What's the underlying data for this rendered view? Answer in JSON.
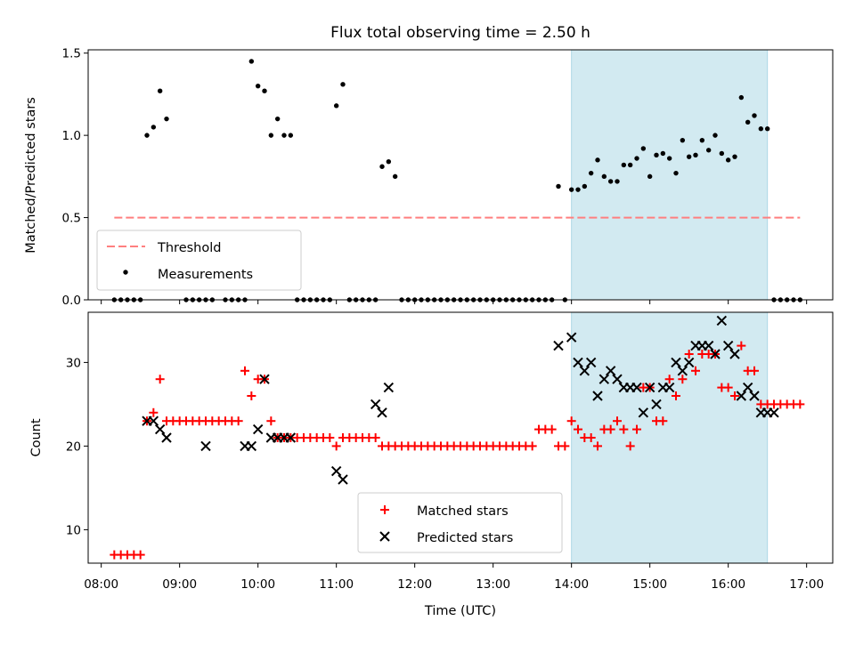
{
  "title": "Flux total observing time = 2.50 h",
  "colors": {
    "threshold": "#ff7f7f",
    "measurement": "#000000",
    "matched": "#ff0000",
    "predicted": "#000000",
    "window": "#add8e6"
  },
  "chart_data": [
    {
      "type": "scatter",
      "panel": "top",
      "ylabel": "Matched/Predicted stars",
      "ylim": [
        0,
        1.52
      ],
      "yticks": [
        0.0,
        0.5,
        1.0,
        1.5
      ],
      "ytick_labels": [
        "0.0",
        "0.5",
        "1.0",
        "1.5"
      ],
      "highlight_window": [
        "14:00",
        "16:30"
      ],
      "legend": {
        "position": "lower-left",
        "entries": [
          "Threshold",
          "Measurements"
        ]
      },
      "threshold": {
        "name": "Threshold",
        "y": 0.5,
        "x_range": [
          "08:10",
          "16:55"
        ]
      },
      "series": [
        {
          "name": "Measurements",
          "x": [
            "08:10",
            "08:15",
            "08:20",
            "08:25",
            "08:30",
            "08:35",
            "08:40",
            "08:45",
            "08:50",
            "09:05",
            "09:10",
            "09:15",
            "09:20",
            "09:25",
            "09:35",
            "09:40",
            "09:45",
            "09:50",
            "09:55",
            "10:00",
            "10:05",
            "10:10",
            "10:15",
            "10:20",
            "10:25",
            "10:30",
            "10:35",
            "10:40",
            "10:45",
            "10:50",
            "10:55",
            "11:00",
            "11:05",
            "11:10",
            "11:15",
            "11:20",
            "11:25",
            "11:30",
            "11:35",
            "11:40",
            "11:45",
            "11:50",
            "11:55",
            "12:00",
            "12:05",
            "12:10",
            "12:15",
            "12:20",
            "12:25",
            "12:30",
            "12:35",
            "12:40",
            "12:45",
            "12:50",
            "12:55",
            "13:00",
            "13:05",
            "13:10",
            "13:15",
            "13:20",
            "13:25",
            "13:30",
            "13:35",
            "13:40",
            "13:45",
            "13:50",
            "13:55",
            "14:00",
            "14:05",
            "14:10",
            "14:15",
            "14:20",
            "14:25",
            "14:30",
            "14:35",
            "14:40",
            "14:45",
            "14:50",
            "14:55",
            "15:00",
            "15:05",
            "15:10",
            "15:15",
            "15:20",
            "15:25",
            "15:30",
            "15:35",
            "15:40",
            "15:45",
            "15:50",
            "15:55",
            "16:00",
            "16:05",
            "16:10",
            "16:15",
            "16:20",
            "16:25",
            "16:30",
            "16:35",
            "16:40",
            "16:45",
            "16:50",
            "16:55"
          ],
          "y": [
            0,
            0,
            0,
            0,
            0,
            1.0,
            1.05,
            1.27,
            1.1,
            0,
            0,
            0,
            0,
            0,
            0,
            0,
            0,
            0,
            1.45,
            1.3,
            1.27,
            1.0,
            1.1,
            1.0,
            1.0,
            0,
            0,
            0,
            0,
            0,
            0,
            1.18,
            1.31,
            0,
            0,
            0,
            0,
            0,
            0.81,
            0.84,
            0.75,
            0,
            0,
            0,
            0,
            0,
            0,
            0,
            0,
            0,
            0,
            0,
            0,
            0,
            0,
            0,
            0,
            0,
            0,
            0,
            0,
            0,
            0,
            0,
            0,
            0.69,
            0,
            0.67,
            0.67,
            0.69,
            0.77,
            0.85,
            0.75,
            0.72,
            0.72,
            0.82,
            0.82,
            0.86,
            0.92,
            0.75,
            0.88,
            0.89,
            0.86,
            0.77,
            0.97,
            0.87,
            0.88,
            0.97,
            0.91,
            1.0,
            0.89,
            0.85,
            0.87,
            1.23,
            1.08,
            1.12,
            1.04,
            1.04,
            0,
            0,
            0,
            0,
            0
          ]
        }
      ]
    },
    {
      "type": "scatter",
      "panel": "bottom",
      "xlabel": "Time (UTC)",
      "ylabel": "Count",
      "ylim": [
        6,
        36
      ],
      "yticks": [
        10,
        20,
        30
      ],
      "ytick_labels": [
        "10",
        "20",
        "30"
      ],
      "xlim": [
        "07:50",
        "17:20"
      ],
      "xtick_labels": [
        "08:00",
        "09:00",
        "10:00",
        "11:00",
        "12:00",
        "13:00",
        "14:00",
        "15:00",
        "16:00",
        "17:00"
      ],
      "highlight_window": [
        "14:00",
        "16:30"
      ],
      "legend": {
        "position": "lower-center",
        "entries": [
          "Matched stars",
          "Predicted stars"
        ]
      },
      "series": [
        {
          "name": "Matched stars",
          "marker": "plus",
          "x": [
            "08:10",
            "08:15",
            "08:20",
            "08:25",
            "08:30",
            "08:35",
            "08:40",
            "08:45",
            "08:50",
            "08:55",
            "09:00",
            "09:05",
            "09:10",
            "09:15",
            "09:20",
            "09:25",
            "09:30",
            "09:35",
            "09:40",
            "09:45",
            "09:50",
            "09:55",
            "10:00",
            "10:05",
            "10:10",
            "10:15",
            "10:20",
            "10:25",
            "10:30",
            "10:35",
            "10:40",
            "10:45",
            "10:50",
            "10:55",
            "11:00",
            "11:05",
            "11:10",
            "11:15",
            "11:20",
            "11:25",
            "11:30",
            "11:35",
            "11:40",
            "11:45",
            "11:50",
            "11:55",
            "12:00",
            "12:05",
            "12:10",
            "12:15",
            "12:20",
            "12:25",
            "12:30",
            "12:35",
            "12:40",
            "12:45",
            "12:50",
            "12:55",
            "13:00",
            "13:05",
            "13:10",
            "13:15",
            "13:20",
            "13:25",
            "13:30",
            "13:35",
            "13:40",
            "13:45",
            "13:50",
            "13:55",
            "14:00",
            "14:05",
            "14:10",
            "14:15",
            "14:20",
            "14:25",
            "14:30",
            "14:35",
            "14:40",
            "14:45",
            "14:50",
            "14:55",
            "15:00",
            "15:05",
            "15:10",
            "15:15",
            "15:20",
            "15:25",
            "15:30",
            "15:35",
            "15:40",
            "15:45",
            "15:50",
            "15:55",
            "16:00",
            "16:05",
            "16:10",
            "16:15",
            "16:20",
            "16:25",
            "16:30",
            "16:35",
            "16:40",
            "16:45",
            "16:50",
            "16:55"
          ],
          "y": [
            7,
            7,
            7,
            7,
            7,
            23,
            24,
            28,
            23,
            23,
            23,
            23,
            23,
            23,
            23,
            23,
            23,
            23,
            23,
            23,
            29,
            26,
            28,
            28,
            23,
            21,
            21,
            21,
            21,
            21,
            21,
            21,
            21,
            21,
            20,
            21,
            21,
            21,
            21,
            21,
            21,
            20,
            20,
            20,
            20,
            20,
            20,
            20,
            20,
            20,
            20,
            20,
            20,
            20,
            20,
            20,
            20,
            20,
            20,
            20,
            20,
            20,
            20,
            20,
            20,
            22,
            22,
            22,
            20,
            20,
            23,
            22,
            21,
            21,
            20,
            22,
            22,
            23,
            22,
            20,
            22,
            27,
            27,
            23,
            23,
            28,
            26,
            28,
            31,
            29,
            31,
            31,
            31,
            27,
            27,
            26,
            32,
            29,
            29,
            25,
            25,
            25,
            25,
            25,
            25,
            25
          ]
        },
        {
          "name": "Predicted stars",
          "marker": "x",
          "x": [
            "08:35",
            "08:40",
            "08:45",
            "08:50",
            "09:20",
            "09:50",
            "09:55",
            "10:00",
            "10:05",
            "10:10",
            "10:15",
            "10:20",
            "10:25",
            "11:00",
            "11:05",
            "11:30",
            "11:35",
            "11:40",
            "13:50",
            "14:00",
            "14:05",
            "14:10",
            "14:15",
            "14:20",
            "14:25",
            "14:30",
            "14:35",
            "14:40",
            "14:45",
            "14:50",
            "14:55",
            "15:00",
            "15:05",
            "15:10",
            "15:15",
            "15:20",
            "15:25",
            "15:30",
            "15:35",
            "15:40",
            "15:45",
            "15:50",
            "15:55",
            "16:00",
            "16:05",
            "16:10",
            "16:15",
            "16:20",
            "16:25",
            "16:30",
            "16:35"
          ],
          "y": [
            23,
            23,
            22,
            21,
            20,
            20,
            20,
            22,
            28,
            21,
            21,
            21,
            21,
            17,
            16,
            25,
            24,
            27,
            32,
            33,
            30,
            29,
            30,
            26,
            28,
            29,
            28,
            27,
            27,
            27,
            24,
            27,
            25,
            27,
            27,
            30,
            29,
            30,
            32,
            32,
            32,
            31,
            35,
            32,
            31,
            26,
            27,
            26,
            24,
            24,
            24
          ]
        }
      ]
    }
  ]
}
